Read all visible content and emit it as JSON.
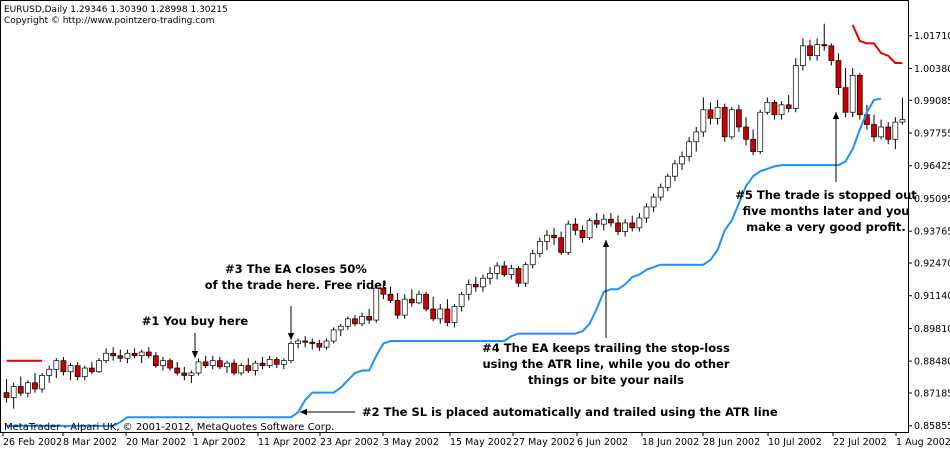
{
  "header": {
    "line1": "EURUSD,Daily  1.29346 1.30390 1.28998 1.30215",
    "line2": "Copyright © http://www.pointzero-trading.com"
  },
  "footer": "MetaTrader - Alpari UK, © 2001-2012, MetaQuotes Software Corp.",
  "colors": {
    "bull_body": "#ffffff",
    "bear_body": "#cc0000",
    "candle_outline": "#000000",
    "trail_line": "#1e90ff",
    "stop_red": "#e00000"
  },
  "annotations": {
    "a1": [
      "#1 You buy here"
    ],
    "a2": [
      "#2 The SL is placed automatically and trailed using the ATR line"
    ],
    "a3": [
      "#3 The EA closes 50%",
      "of the trade here. Free ride!"
    ],
    "a4": [
      "#4 The EA keeps trailing the stop-loss",
      "using the ATR line, while you do other",
      "things or bite your nails"
    ],
    "a5": [
      "#5 The trade is stopped out",
      "five months later and you",
      "make a very good profit."
    ]
  },
  "chart_data": {
    "type": "candlestick",
    "symbol": "EURUSD",
    "timeframe": "Daily",
    "y_ticks": [
      "1.01710",
      "1.00380",
      "0.99085",
      "0.97755",
      "0.96425",
      "0.95095",
      "0.93765",
      "0.92470",
      "0.91140",
      "0.89810",
      "0.88480",
      "0.87185",
      "0.85855"
    ],
    "x_ticks": [
      "26 Feb 2002",
      "8 Mar 2002",
      "20 Mar 2002",
      "1 Apr 2002",
      "11 Apr 2002",
      "23 Apr 2002",
      "3 May 2002",
      "15 May 2002",
      "27 May 2002",
      "6 Jun 2002",
      "18 Jun 2002",
      "28 Jun 2002",
      "10 Jul 2002",
      "22 Jul 2002",
      "1 Aug 2002"
    ],
    "ylim": [
      0.856,
      1.0235
    ],
    "candles": [
      {
        "o": 0.872,
        "h": 0.8775,
        "l": 0.868,
        "c": 0.87
      },
      {
        "o": 0.87,
        "h": 0.876,
        "l": 0.8655,
        "c": 0.8745
      },
      {
        "o": 0.8745,
        "h": 0.8785,
        "l": 0.8705,
        "c": 0.8718
      },
      {
        "o": 0.8718,
        "h": 0.877,
        "l": 0.87,
        "c": 0.876
      },
      {
        "o": 0.876,
        "h": 0.88,
        "l": 0.872,
        "c": 0.8735
      },
      {
        "o": 0.8735,
        "h": 0.88,
        "l": 0.872,
        "c": 0.879
      },
      {
        "o": 0.879,
        "h": 0.883,
        "l": 0.876,
        "c": 0.8815
      },
      {
        "o": 0.8815,
        "h": 0.886,
        "l": 0.878,
        "c": 0.885
      },
      {
        "o": 0.885,
        "h": 0.8865,
        "l": 0.879,
        "c": 0.8805
      },
      {
        "o": 0.8805,
        "h": 0.884,
        "l": 0.877,
        "c": 0.883
      },
      {
        "o": 0.883,
        "h": 0.8845,
        "l": 0.877,
        "c": 0.8785
      },
      {
        "o": 0.8785,
        "h": 0.883,
        "l": 0.877,
        "c": 0.882
      },
      {
        "o": 0.882,
        "h": 0.8845,
        "l": 0.8795,
        "c": 0.8805
      },
      {
        "o": 0.8805,
        "h": 0.886,
        "l": 0.88,
        "c": 0.885
      },
      {
        "o": 0.885,
        "h": 0.89,
        "l": 0.884,
        "c": 0.888
      },
      {
        "o": 0.888,
        "h": 0.8905,
        "l": 0.885,
        "c": 0.887
      },
      {
        "o": 0.887,
        "h": 0.8895,
        "l": 0.8845,
        "c": 0.886
      },
      {
        "o": 0.886,
        "h": 0.8895,
        "l": 0.884,
        "c": 0.888
      },
      {
        "o": 0.888,
        "h": 0.89,
        "l": 0.886,
        "c": 0.887
      },
      {
        "o": 0.887,
        "h": 0.8895,
        "l": 0.884,
        "c": 0.8885
      },
      {
        "o": 0.8885,
        "h": 0.8905,
        "l": 0.886,
        "c": 0.887
      },
      {
        "o": 0.887,
        "h": 0.8885,
        "l": 0.882,
        "c": 0.883
      },
      {
        "o": 0.883,
        "h": 0.8865,
        "l": 0.881,
        "c": 0.885
      },
      {
        "o": 0.885,
        "h": 0.886,
        "l": 0.881,
        "c": 0.882
      },
      {
        "o": 0.882,
        "h": 0.8845,
        "l": 0.879,
        "c": 0.88
      },
      {
        "o": 0.88,
        "h": 0.8825,
        "l": 0.877,
        "c": 0.879
      },
      {
        "o": 0.879,
        "h": 0.881,
        "l": 0.876,
        "c": 0.88
      },
      {
        "o": 0.88,
        "h": 0.886,
        "l": 0.879,
        "c": 0.8845
      },
      {
        "o": 0.8845,
        "h": 0.887,
        "l": 0.882,
        "c": 0.883
      },
      {
        "o": 0.883,
        "h": 0.887,
        "l": 0.8815,
        "c": 0.885
      },
      {
        "o": 0.885,
        "h": 0.8865,
        "l": 0.8815,
        "c": 0.8825
      },
      {
        "o": 0.8825,
        "h": 0.885,
        "l": 0.88,
        "c": 0.884
      },
      {
        "o": 0.884,
        "h": 0.8855,
        "l": 0.879,
        "c": 0.88
      },
      {
        "o": 0.88,
        "h": 0.884,
        "l": 0.879,
        "c": 0.883
      },
      {
        "o": 0.883,
        "h": 0.886,
        "l": 0.88,
        "c": 0.881
      },
      {
        "o": 0.881,
        "h": 0.885,
        "l": 0.879,
        "c": 0.884
      },
      {
        "o": 0.884,
        "h": 0.8865,
        "l": 0.8815,
        "c": 0.883
      },
      {
        "o": 0.883,
        "h": 0.887,
        "l": 0.882,
        "c": 0.8855
      },
      {
        "o": 0.8855,
        "h": 0.8865,
        "l": 0.882,
        "c": 0.8835
      },
      {
        "o": 0.8835,
        "h": 0.886,
        "l": 0.8815,
        "c": 0.885
      },
      {
        "o": 0.885,
        "h": 0.893,
        "l": 0.884,
        "c": 0.892
      },
      {
        "o": 0.892,
        "h": 0.894,
        "l": 0.89,
        "c": 0.893
      },
      {
        "o": 0.893,
        "h": 0.895,
        "l": 0.8905,
        "c": 0.8925
      },
      {
        "o": 0.8925,
        "h": 0.894,
        "l": 0.8895,
        "c": 0.892
      },
      {
        "o": 0.892,
        "h": 0.8935,
        "l": 0.889,
        "c": 0.8905
      },
      {
        "o": 0.8905,
        "h": 0.894,
        "l": 0.8895,
        "c": 0.893
      },
      {
        "o": 0.893,
        "h": 0.8985,
        "l": 0.892,
        "c": 0.8975
      },
      {
        "o": 0.8975,
        "h": 0.9,
        "l": 0.895,
        "c": 0.899
      },
      {
        "o": 0.899,
        "h": 0.903,
        "l": 0.8975,
        "c": 0.902
      },
      {
        "o": 0.902,
        "h": 0.9035,
        "l": 0.899,
        "c": 0.9
      },
      {
        "o": 0.9,
        "h": 0.9045,
        "l": 0.899,
        "c": 0.903
      },
      {
        "o": 0.903,
        "h": 0.906,
        "l": 0.9,
        "c": 0.9015
      },
      {
        "o": 0.9015,
        "h": 0.916,
        "l": 0.9005,
        "c": 0.9145
      },
      {
        "o": 0.9145,
        "h": 0.9175,
        "l": 0.91,
        "c": 0.912
      },
      {
        "o": 0.912,
        "h": 0.915,
        "l": 0.9085,
        "c": 0.9095
      },
      {
        "o": 0.9095,
        "h": 0.9125,
        "l": 0.902,
        "c": 0.9035
      },
      {
        "o": 0.9035,
        "h": 0.912,
        "l": 0.902,
        "c": 0.91
      },
      {
        "o": 0.91,
        "h": 0.914,
        "l": 0.907,
        "c": 0.9085
      },
      {
        "o": 0.9085,
        "h": 0.9135,
        "l": 0.908,
        "c": 0.912
      },
      {
        "o": 0.912,
        "h": 0.913,
        "l": 0.905,
        "c": 0.906
      },
      {
        "o": 0.906,
        "h": 0.911,
        "l": 0.901,
        "c": 0.902
      },
      {
        "o": 0.902,
        "h": 0.908,
        "l": 0.9,
        "c": 0.906
      },
      {
        "o": 0.906,
        "h": 0.91,
        "l": 0.899,
        "c": 0.9005
      },
      {
        "o": 0.9005,
        "h": 0.908,
        "l": 0.8985,
        "c": 0.907
      },
      {
        "o": 0.907,
        "h": 0.913,
        "l": 0.905,
        "c": 0.912
      },
      {
        "o": 0.912,
        "h": 0.918,
        "l": 0.9095,
        "c": 0.916
      },
      {
        "o": 0.916,
        "h": 0.919,
        "l": 0.913,
        "c": 0.915
      },
      {
        "o": 0.915,
        "h": 0.92,
        "l": 0.913,
        "c": 0.9185
      },
      {
        "o": 0.9185,
        "h": 0.923,
        "l": 0.916,
        "c": 0.9205
      },
      {
        "o": 0.9205,
        "h": 0.925,
        "l": 0.918,
        "c": 0.9235
      },
      {
        "o": 0.9235,
        "h": 0.9255,
        "l": 0.919,
        "c": 0.92
      },
      {
        "o": 0.92,
        "h": 0.924,
        "l": 0.918,
        "c": 0.9225
      },
      {
        "o": 0.9225,
        "h": 0.9235,
        "l": 0.915,
        "c": 0.9165
      },
      {
        "o": 0.9165,
        "h": 0.925,
        "l": 0.915,
        "c": 0.924
      },
      {
        "o": 0.924,
        "h": 0.93,
        "l": 0.9225,
        "c": 0.9285
      },
      {
        "o": 0.9285,
        "h": 0.935,
        "l": 0.927,
        "c": 0.9335
      },
      {
        "o": 0.9335,
        "h": 0.938,
        "l": 0.93,
        "c": 0.936
      },
      {
        "o": 0.936,
        "h": 0.939,
        "l": 0.932,
        "c": 0.935
      },
      {
        "o": 0.935,
        "h": 0.9375,
        "l": 0.928,
        "c": 0.929
      },
      {
        "o": 0.929,
        "h": 0.942,
        "l": 0.928,
        "c": 0.9405
      },
      {
        "o": 0.9405,
        "h": 0.943,
        "l": 0.936,
        "c": 0.938
      },
      {
        "o": 0.938,
        "h": 0.94,
        "l": 0.933,
        "c": 0.935
      },
      {
        "o": 0.935,
        "h": 0.943,
        "l": 0.934,
        "c": 0.942
      },
      {
        "o": 0.942,
        "h": 0.945,
        "l": 0.939,
        "c": 0.9405
      },
      {
        "o": 0.9405,
        "h": 0.9445,
        "l": 0.938,
        "c": 0.9425
      },
      {
        "o": 0.9425,
        "h": 0.945,
        "l": 0.9395,
        "c": 0.941
      },
      {
        "o": 0.941,
        "h": 0.944,
        "l": 0.936,
        "c": 0.9375
      },
      {
        "o": 0.9375,
        "h": 0.9425,
        "l": 0.9355,
        "c": 0.941
      },
      {
        "o": 0.941,
        "h": 0.944,
        "l": 0.9375,
        "c": 0.939
      },
      {
        "o": 0.939,
        "h": 0.945,
        "l": 0.9375,
        "c": 0.943
      },
      {
        "o": 0.943,
        "h": 0.949,
        "l": 0.941,
        "c": 0.9475
      },
      {
        "o": 0.9475,
        "h": 0.953,
        "l": 0.9455,
        "c": 0.9515
      },
      {
        "o": 0.9515,
        "h": 0.957,
        "l": 0.95,
        "c": 0.9555
      },
      {
        "o": 0.9555,
        "h": 0.961,
        "l": 0.954,
        "c": 0.96
      },
      {
        "o": 0.96,
        "h": 0.9665,
        "l": 0.958,
        "c": 0.965
      },
      {
        "o": 0.965,
        "h": 0.97,
        "l": 0.9625,
        "c": 0.968
      },
      {
        "o": 0.968,
        "h": 0.976,
        "l": 0.966,
        "c": 0.974
      },
      {
        "o": 0.974,
        "h": 0.98,
        "l": 0.97,
        "c": 0.978
      },
      {
        "o": 0.978,
        "h": 0.992,
        "l": 0.976,
        "c": 0.987
      },
      {
        "o": 0.987,
        "h": 0.99,
        "l": 0.981,
        "c": 0.9835
      },
      {
        "o": 0.9835,
        "h": 0.991,
        "l": 0.981,
        "c": 0.988
      },
      {
        "o": 0.988,
        "h": 0.9895,
        "l": 0.974,
        "c": 0.976
      },
      {
        "o": 0.976,
        "h": 0.988,
        "l": 0.975,
        "c": 0.987
      },
      {
        "o": 0.987,
        "h": 0.989,
        "l": 0.978,
        "c": 0.98
      },
      {
        "o": 0.98,
        "h": 0.984,
        "l": 0.9725,
        "c": 0.975
      },
      {
        "o": 0.975,
        "h": 0.979,
        "l": 0.9685,
        "c": 0.97
      },
      {
        "o": 0.97,
        "h": 0.987,
        "l": 0.969,
        "c": 0.986
      },
      {
        "o": 0.986,
        "h": 0.992,
        "l": 0.985,
        "c": 0.99
      },
      {
        "o": 0.99,
        "h": 0.991,
        "l": 0.983,
        "c": 0.985
      },
      {
        "o": 0.985,
        "h": 0.9905,
        "l": 0.983,
        "c": 0.989
      },
      {
        "o": 0.989,
        "h": 0.993,
        "l": 0.986,
        "c": 0.9875
      },
      {
        "o": 0.9875,
        "h": 1.008,
        "l": 0.986,
        "c": 1.005
      },
      {
        "o": 1.005,
        "h": 1.016,
        "l": 1.003,
        "c": 1.013
      },
      {
        "o": 1.013,
        "h": 1.0155,
        "l": 1.007,
        "c": 1.009
      },
      {
        "o": 1.009,
        "h": 1.016,
        "l": 1.007,
        "c": 1.0135
      },
      {
        "o": 1.0135,
        "h": 1.022,
        "l": 1.011,
        "c": 1.013
      },
      {
        "o": 1.013,
        "h": 1.014,
        "l": 1.005,
        "c": 1.007
      },
      {
        "o": 1.007,
        "h": 1.01,
        "l": 0.993,
        "c": 0.996
      },
      {
        "o": 0.996,
        "h": 1.004,
        "l": 0.984,
        "c": 0.986
      },
      {
        "o": 0.986,
        "h": 1.004,
        "l": 0.984,
        "c": 1.001
      },
      {
        "o": 1.001,
        "h": 1.002,
        "l": 0.983,
        "c": 0.985
      },
      {
        "o": 0.985,
        "h": 0.989,
        "l": 0.979,
        "c": 0.981
      },
      {
        "o": 0.981,
        "h": 0.985,
        "l": 0.974,
        "c": 0.976
      },
      {
        "o": 0.976,
        "h": 0.983,
        "l": 0.975,
        "c": 0.98
      },
      {
        "o": 0.98,
        "h": 0.982,
        "l": 0.973,
        "c": 0.975
      },
      {
        "o": 0.975,
        "h": 0.984,
        "l": 0.971,
        "c": 0.982
      },
      {
        "o": 0.982,
        "h": 0.992,
        "l": 0.981,
        "c": 0.983
      }
    ],
    "trail_sl": [
      [
        0.8585,
        0.8585,
        0.8585,
        0.8585,
        0.8585,
        0.8585,
        0.8585,
        0.8585,
        0.8585,
        0.8585,
        0.8585,
        0.8585,
        0.8585,
        0.8585,
        0.8585,
        0.8585
      ],
      [
        0.86,
        0.862,
        0.862,
        0.862,
        0.862,
        0.862,
        0.862,
        0.862,
        0.862,
        0.862,
        0.862,
        0.862,
        0.862,
        0.862,
        0.862,
        0.862,
        0.862,
        0.862,
        0.862,
        0.862,
        0.862,
        0.862,
        0.862,
        0.862,
        0.862
      ],
      [
        0.864,
        0.869,
        0.872,
        0.872,
        0.872,
        0.872,
        0.874,
        0.877,
        0.88,
        0.881,
        0.881,
        0.887,
        0.892,
        0.893,
        0.893,
        0.893,
        0.893,
        0.893,
        0.893,
        0.893,
        0.893,
        0.893,
        0.893,
        0.893,
        0.893,
        0.893,
        0.893,
        0.893,
        0.893,
        0.893
      ],
      [
        0.895,
        0.896,
        0.896,
        0.896,
        0.896,
        0.896,
        0.896,
        0.896,
        0.896,
        0.896,
        0.897,
        0.9,
        0.906,
        0.913,
        0.914,
        0.914,
        0.916,
        0.919,
        0.92,
        0.922,
        0.923,
        0.924,
        0.924,
        0.924,
        0.924,
        0.924,
        0.924,
        0.924
      ],
      [
        0.926,
        0.93,
        0.938,
        0.942,
        0.949,
        0.956,
        0.96,
        0.962,
        0.963,
        0.964,
        0.9645,
        0.9645,
        0.9645,
        0.9645,
        0.9645,
        0.9645,
        0.9645,
        0.9645,
        0.9645,
        0.966,
        0.971,
        0.979,
        0.986,
        0.991,
        0.9915
      ]
    ],
    "stop_red": [
      [
        0.885,
        0.885,
        0.885,
        0.885,
        0.885,
        0.885
      ],
      [
        1.0215,
        1.015,
        1.014,
        1.014,
        1.01,
        1.009,
        1.006,
        1.006
      ]
    ]
  }
}
